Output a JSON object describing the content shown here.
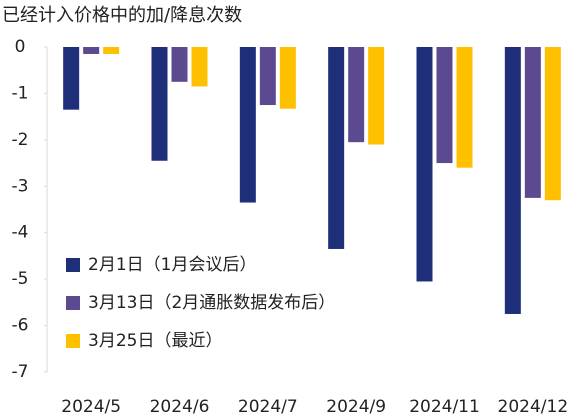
{
  "chart_data": {
    "type": "bar",
    "title": "已经计入价格中的加/降息次数",
    "categories": [
      "2024/5",
      "2024/6",
      "2024/7",
      "2024/9",
      "2024/11",
      "2024/12"
    ],
    "series": [
      {
        "name": "2月1日（1月会议后）",
        "color": "#1f2e78",
        "values": [
          -1.35,
          -2.45,
          -3.35,
          -4.35,
          -5.05,
          -5.75
        ]
      },
      {
        "name": "3月13日（2月通胀数据发布后）",
        "color": "#5b4a8f",
        "values": [
          -0.15,
          -0.75,
          -1.25,
          -2.05,
          -2.5,
          -3.25
        ]
      },
      {
        "name": "3月25日（最近）",
        "color": "#ffc000",
        "values": [
          -0.15,
          -0.85,
          -1.33,
          -2.1,
          -2.6,
          -3.3
        ]
      }
    ],
    "ylim": [
      -7,
      0
    ],
    "yticks": [
      0,
      -1,
      -2,
      -3,
      -4,
      -5,
      -6,
      -7
    ],
    "legend": "lower-left"
  }
}
